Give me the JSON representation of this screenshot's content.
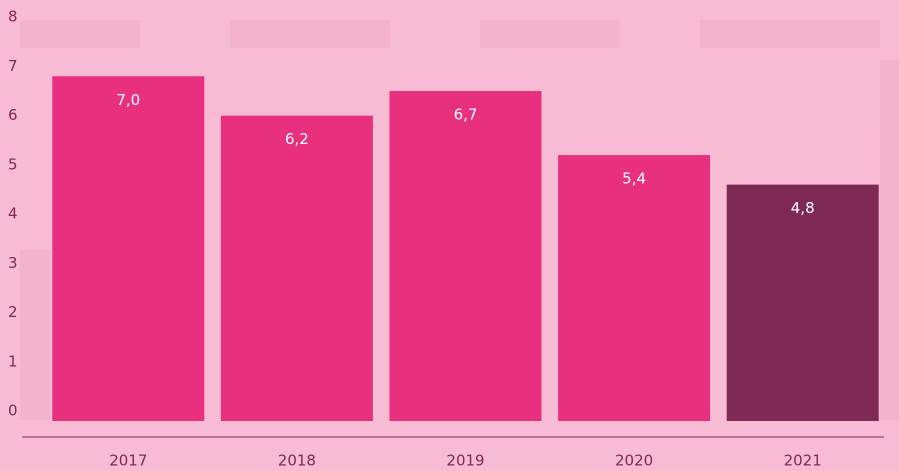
{
  "chart_data": {
    "type": "bar",
    "categories": [
      "2017",
      "2018",
      "2019",
      "2020",
      "2021"
    ],
    "values": [
      7.0,
      6.2,
      6.7,
      5.4,
      4.8
    ],
    "value_labels": [
      "7,0",
      "6,2",
      "6,7",
      "5,4",
      "4,8"
    ],
    "colors": [
      "#e8307f",
      "#e8307f",
      "#e8307f",
      "#e8307f",
      "#7f2a55"
    ],
    "ylim": [
      0,
      8
    ],
    "yticks": [
      0,
      1,
      2,
      3,
      4,
      5,
      6,
      7,
      8
    ],
    "grid": false
  }
}
